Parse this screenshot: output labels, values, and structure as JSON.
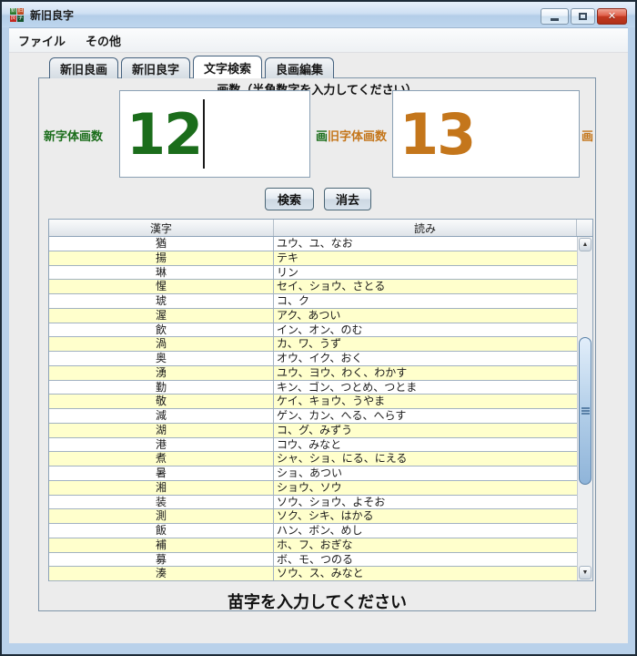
{
  "window": {
    "title": "新旧良字",
    "app_icon_chars": [
      "新",
      "旧",
      "良",
      "字"
    ]
  },
  "menu": {
    "items": [
      "ファイル",
      "その他"
    ]
  },
  "tabs": [
    {
      "label": "新旧良画",
      "selected": false
    },
    {
      "label": "新旧良字",
      "selected": false
    },
    {
      "label": "文字検索",
      "selected": true
    },
    {
      "label": "良画編集",
      "selected": false
    }
  ],
  "search_panel": {
    "instruction": "画数（半角数字を入力してください）",
    "new_label": "新字体画数",
    "new_value": "12",
    "new_unit": "画",
    "old_label": "旧字体画数",
    "old_value": "13",
    "old_unit": "画",
    "search_button": "検索",
    "clear_button": "消去"
  },
  "colors": {
    "new_accent": "#1b6d1b",
    "old_accent": "#c4761b",
    "row_alt": "#ffffcc"
  },
  "table": {
    "columns": [
      "漢字",
      "読み"
    ],
    "rows": [
      {
        "kanji": "猶",
        "yomi": "ユウ、ユ、なお"
      },
      {
        "kanji": "揚",
        "yomi": "テキ"
      },
      {
        "kanji": "琳",
        "yomi": "リン"
      },
      {
        "kanji": "惺",
        "yomi": "セイ、ショウ、さとる"
      },
      {
        "kanji": "琥",
        "yomi": "コ、ク"
      },
      {
        "kanji": "渥",
        "yomi": "アク、あつい"
      },
      {
        "kanji": "飲",
        "yomi": "イン、オン、のむ"
      },
      {
        "kanji": "渦",
        "yomi": "カ、ワ、うず"
      },
      {
        "kanji": "奥",
        "yomi": "オウ、イク、おく"
      },
      {
        "kanji": "湧",
        "yomi": "ユウ、ヨウ、わく、わかす"
      },
      {
        "kanji": "勤",
        "yomi": "キン、ゴン、つとめ、つとま"
      },
      {
        "kanji": "敬",
        "yomi": "ケイ、キョウ、うやま"
      },
      {
        "kanji": "減",
        "yomi": "ゲン、カン、へる、へらす"
      },
      {
        "kanji": "湖",
        "yomi": "コ、グ、みずう"
      },
      {
        "kanji": "港",
        "yomi": "コウ、みなと"
      },
      {
        "kanji": "煮",
        "yomi": "シャ、ショ、にる、にえる"
      },
      {
        "kanji": "暑",
        "yomi": "ショ、あつい"
      },
      {
        "kanji": "湘",
        "yomi": "ショウ、ソウ"
      },
      {
        "kanji": "装",
        "yomi": "ソウ、ショウ、よそお"
      },
      {
        "kanji": "測",
        "yomi": "ソク、シキ、はかる"
      },
      {
        "kanji": "飯",
        "yomi": "ハン、ボン、めし"
      },
      {
        "kanji": "補",
        "yomi": "ホ、フ、おぎな"
      },
      {
        "kanji": "募",
        "yomi": "ボ、モ、つのる"
      },
      {
        "kanji": "湊",
        "yomi": "ソウ、ス、みなと"
      }
    ]
  },
  "footer": {
    "label": "苗字を入力してください"
  }
}
